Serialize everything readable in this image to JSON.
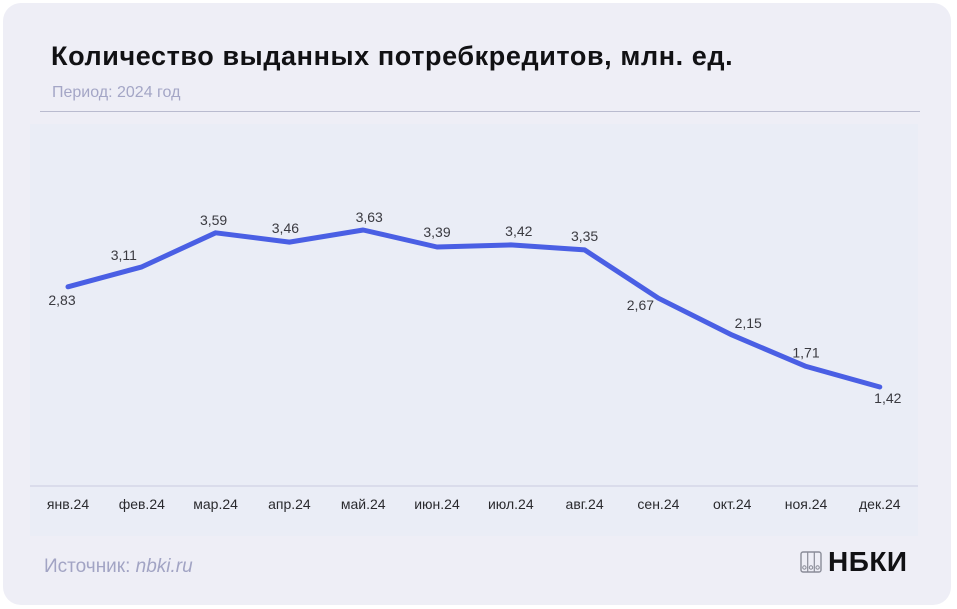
{
  "header": {
    "title": "Количество выданных потребкредитов, млн. ед.",
    "subtitle": "Период: 2024 год"
  },
  "footer": {
    "source_label": "Источник:",
    "source_link": "nbki.ru",
    "logo_text": "НБКИ",
    "logo_icon": "binders-icon"
  },
  "colors": {
    "line": "#4a5fe4",
    "card_bg": "#eeeef6",
    "plot_bg": "#eaedf6",
    "muted_text": "#a4a6c6"
  },
  "chart_data": {
    "type": "line",
    "title": "Количество выданных потребкредитов, млн. ед.",
    "subtitle": "Период: 2024 год",
    "xlabel": "",
    "ylabel": "млн. ед.",
    "categories": [
      "янв.24",
      "фев.24",
      "мар.24",
      "апр.24",
      "май.24",
      "июн.24",
      "июл.24",
      "авг.24",
      "сен.24",
      "окт.24",
      "ноя.24",
      "дек.24"
    ],
    "values": [
      2.83,
      3.11,
      3.59,
      3.46,
      3.63,
      3.39,
      3.42,
      3.35,
      2.67,
      2.15,
      1.71,
      1.42
    ],
    "value_labels": [
      "2,83",
      "3,11",
      "3,59",
      "3,46",
      "3,63",
      "3,39",
      "3,42",
      "3,35",
      "2,67",
      "2,15",
      "1,71",
      "1,42"
    ],
    "grid": false,
    "legend": null,
    "y_axis_visible": false,
    "source": "Источник: nbki.ru"
  }
}
